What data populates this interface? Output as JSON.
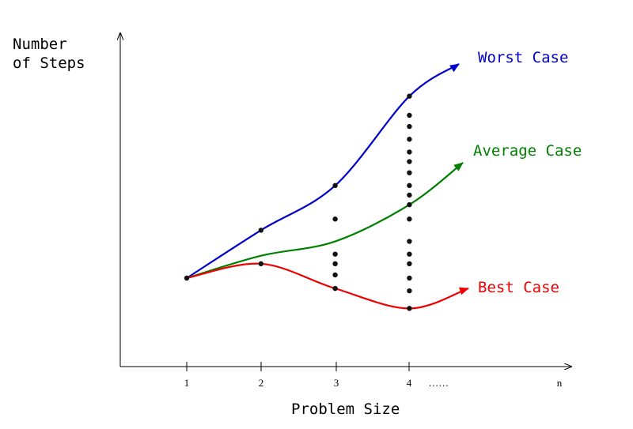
{
  "chart_data": {
    "type": "line",
    "title": "",
    "ylabel_lines": [
      "Number",
      "of Steps"
    ],
    "xlabel": "Problem Size",
    "x_ticks": [
      "1",
      "2",
      "3",
      "4",
      "n"
    ],
    "x_ellipsis": "......",
    "series": [
      {
        "name": "Worst Case",
        "color": "#0000cc",
        "points": [
          [
            1,
            1.0
          ],
          [
            2,
            4.0
          ],
          [
            3,
            6.8
          ],
          [
            4,
            12.4
          ]
        ]
      },
      {
        "name": "Average Case",
        "color": "#008000",
        "points": [
          [
            1,
            1.0
          ],
          [
            2,
            2.4
          ],
          [
            3,
            3.3
          ],
          [
            4,
            5.6
          ]
        ]
      },
      {
        "name": "Best Case",
        "color": "#ee0000",
        "points": [
          [
            1,
            1.0
          ],
          [
            2,
            1.9
          ],
          [
            3,
            0.35
          ],
          [
            4,
            -0.9
          ]
        ]
      }
    ],
    "outcomes": [
      {
        "x": 1,
        "y": [
          1.0
        ]
      },
      {
        "x": 2,
        "y": [
          4.0,
          1.9
        ]
      },
      {
        "x": 3,
        "y": [
          6.8,
          4.7,
          2.5,
          1.9,
          1.2,
          0.35
        ]
      },
      {
        "x": 4,
        "y": [
          12.4,
          11.2,
          10.5,
          9.7,
          8.9,
          8.3,
          7.6,
          6.8,
          6.2,
          5.6,
          4.7,
          3.3,
          2.5,
          1.9,
          1.0,
          0.2,
          -0.9
        ]
      }
    ]
  }
}
